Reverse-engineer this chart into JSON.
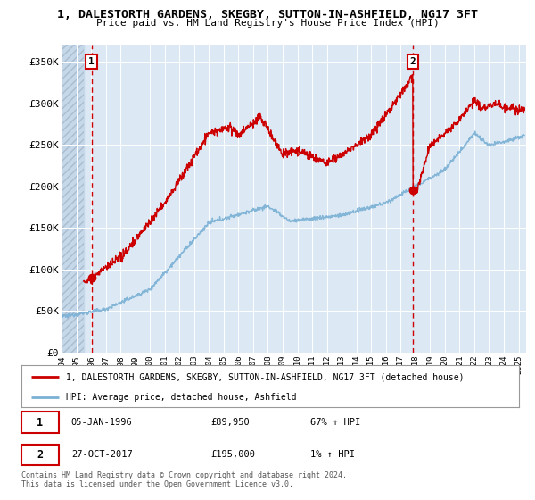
{
  "title_line1": "1, DALESTORTH GARDENS, SKEGBY, SUTTON-IN-ASHFIELD, NG17 3FT",
  "title_line2": "Price paid vs. HM Land Registry's House Price Index (HPI)",
  "bg_color": "#dce9f5",
  "grid_color": "#ffffff",
  "line1_color": "#cc0000",
  "line2_color": "#7ab0d4",
  "dashed_color": "#cc0000",
  "xmin": 1994.0,
  "xmax": 2025.5,
  "ymin": 0,
  "ymax": 370000,
  "yticks": [
    0,
    50000,
    100000,
    150000,
    200000,
    250000,
    300000,
    350000
  ],
  "ytick_labels": [
    "£0",
    "£50K",
    "£100K",
    "£150K",
    "£200K",
    "£250K",
    "£300K",
    "£350K"
  ],
  "sale1_x": 1996.03,
  "sale1_y": 89950,
  "sale2_x": 2017.82,
  "sale2_y": 195000,
  "legend_line1": "1, DALESTORTH GARDENS, SKEGBY, SUTTON-IN-ASHFIELD, NG17 3FT (detached house)",
  "legend_line2": "HPI: Average price, detached house, Ashfield",
  "footer": "Contains HM Land Registry data © Crown copyright and database right 2024.\nThis data is licensed under the Open Government Licence v3.0."
}
